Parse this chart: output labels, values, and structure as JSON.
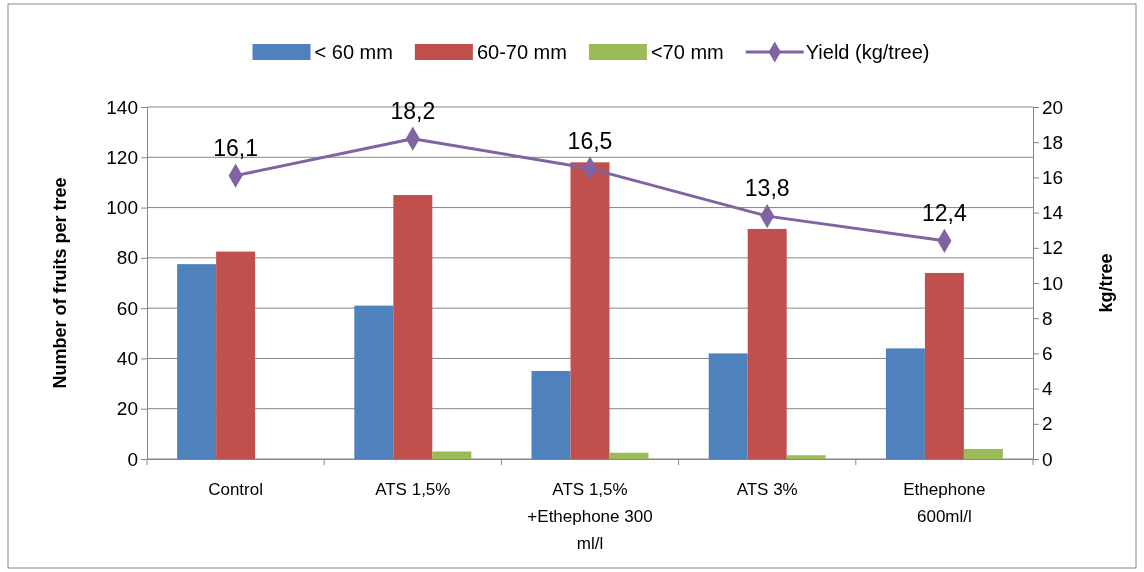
{
  "chart_data": {
    "type": "bar",
    "categories": [
      "Control",
      "ATS 1,5%",
      "ATS 1,5% +Ethephone 300 ml/l",
      "ATS 3%",
      "Ethephone 600ml/l"
    ],
    "series": [
      {
        "name": "< 60 mm",
        "color": "#4f81bd",
        "values": [
          77.5,
          61,
          35,
          42,
          44
        ]
      },
      {
        "name": "60-70 mm",
        "color": "#c0504d",
        "values": [
          82.5,
          105,
          118,
          91.5,
          74
        ]
      },
      {
        "name": "<70 mm",
        "color": "#9bbb59",
        "values": [
          0,
          3,
          2.5,
          1.5,
          4
        ]
      },
      {
        "name": "Yield (kg/tree)",
        "type": "line",
        "axis": "y2",
        "color": "#8064a2",
        "marker": "diamond",
        "values": [
          16.1,
          18.2,
          16.5,
          13.8,
          12.4
        ],
        "value_labels": [
          "16,1",
          "18,2",
          "16,5",
          "13,8",
          "12,4"
        ]
      }
    ],
    "ylabel": "Number of fruits per tree",
    "y2label": "kg/tree",
    "ylim": [
      0,
      140
    ],
    "yticks": [
      0,
      20,
      40,
      60,
      80,
      100,
      120,
      140
    ],
    "y2lim": [
      0,
      20
    ],
    "y2ticks": [
      0,
      2,
      4,
      6,
      8,
      10,
      12,
      14,
      16,
      18,
      20
    ],
    "grid": "y",
    "legend": "top"
  }
}
